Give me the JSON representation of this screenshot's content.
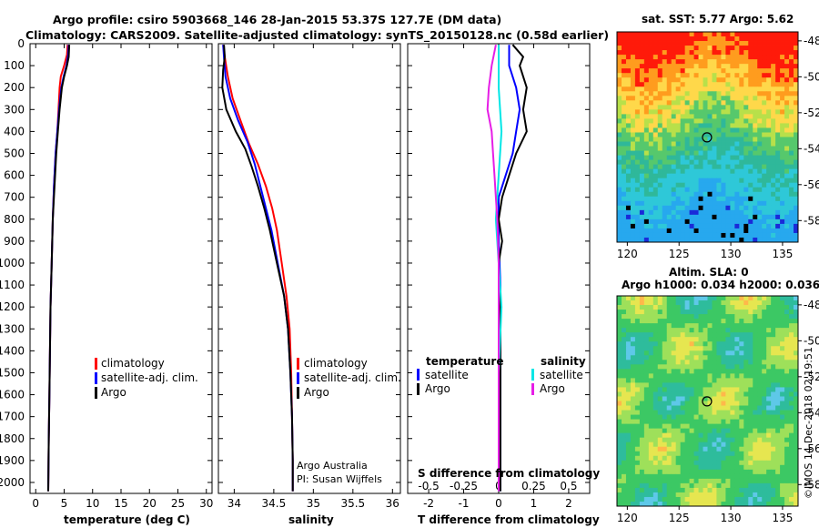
{
  "titles": {
    "line1": "Argo profile: csiro 5903668_146 28-Jan-2015 53.37S 127.7E (DM data)",
    "line2": "Climatology: CARS2009. Satellite-adjusted climatology: synTS_20150128.nc (0.58d earlier)"
  },
  "colors": {
    "climatology": "#ff0000",
    "satellite": "#0000ff",
    "argo": "#000000",
    "sat_salinity": "#00e6e6",
    "argo_salinity": "#e61ee6"
  },
  "chart_data": [
    {
      "type": "line",
      "panel": "temperature",
      "xlabel": "temperature (deg C)",
      "xlim": [
        -1,
        31
      ],
      "xticks": [
        "0",
        "5",
        "10",
        "15",
        "20",
        "25",
        "30"
      ],
      "ylim": [
        2050,
        0
      ],
      "yticks": [
        "0",
        "100",
        "200",
        "300",
        "400",
        "500",
        "600",
        "700",
        "800",
        "900",
        "1000",
        "1100",
        "1200",
        "1300",
        "1400",
        "1500",
        "1600",
        "1700",
        "1800",
        "1900",
        "2000"
      ],
      "legend": [
        "climatology",
        "satellite-adj. clim.",
        "Argo"
      ],
      "series": [
        {
          "name": "climatology",
          "color": "red",
          "points": [
            [
              5.6,
              5
            ],
            [
              5.5,
              50
            ],
            [
              5.0,
              100
            ],
            [
              4.4,
              150
            ],
            [
              4.2,
              200
            ],
            [
              4.0,
              300
            ],
            [
              3.8,
              400
            ],
            [
              3.5,
              500
            ],
            [
              3.2,
              650
            ],
            [
              3.0,
              800
            ],
            [
              2.8,
              1000
            ],
            [
              2.6,
              1200
            ],
            [
              2.5,
              1400
            ],
            [
              2.4,
              1600
            ],
            [
              2.3,
              1800
            ],
            [
              2.2,
              2040
            ]
          ]
        },
        {
          "name": "satellite-adj. clim.",
          "color": "blue",
          "points": [
            [
              5.8,
              5
            ],
            [
              5.7,
              50
            ],
            [
              5.4,
              100
            ],
            [
              4.9,
              150
            ],
            [
              4.5,
              200
            ],
            [
              4.1,
              300
            ],
            [
              3.8,
              400
            ],
            [
              3.5,
              500
            ],
            [
              3.2,
              650
            ],
            [
              3.0,
              800
            ],
            [
              2.8,
              1000
            ],
            [
              2.6,
              1200
            ],
            [
              2.5,
              1400
            ],
            [
              2.4,
              1600
            ],
            [
              2.3,
              1800
            ],
            [
              2.2,
              2040
            ]
          ]
        },
        {
          "name": "Argo",
          "color": "black",
          "points": [
            [
              5.9,
              5
            ],
            [
              5.8,
              60
            ],
            [
              5.5,
              100
            ],
            [
              5.0,
              150
            ],
            [
              4.6,
              200
            ],
            [
              4.2,
              300
            ],
            [
              3.9,
              400
            ],
            [
              3.6,
              500
            ],
            [
              3.3,
              650
            ],
            [
              3.0,
              800
            ],
            [
              2.8,
              1000
            ],
            [
              2.6,
              1200
            ],
            [
              2.5,
              1400
            ],
            [
              2.4,
              1600
            ],
            [
              2.3,
              1800
            ],
            [
              2.2,
              2040
            ]
          ]
        }
      ]
    },
    {
      "type": "line",
      "panel": "salinity",
      "xlabel": "salinity",
      "xlim": [
        33.8,
        36.1
      ],
      "xticks": [
        "34",
        "34.5",
        "35",
        "35.5",
        "36"
      ],
      "ylim": [
        2050,
        0
      ],
      "legend": [
        "climatology",
        "satellite-adj. clim.",
        "Argo"
      ],
      "annotation": [
        "Argo Australia",
        "PI: Susan Wijffels"
      ],
      "series": [
        {
          "name": "climatology",
          "color": "red",
          "points": [
            [
              33.86,
              5
            ],
            [
              33.88,
              60
            ],
            [
              33.92,
              150
            ],
            [
              33.98,
              250
            ],
            [
              34.08,
              350
            ],
            [
              34.18,
              450
            ],
            [
              34.3,
              550
            ],
            [
              34.4,
              650
            ],
            [
              34.48,
              750
            ],
            [
              34.54,
              850
            ],
            [
              34.6,
              1000
            ],
            [
              34.66,
              1150
            ],
            [
              34.7,
              1300
            ],
            [
              34.72,
              1500
            ],
            [
              34.73,
              1700
            ],
            [
              34.74,
              1900
            ],
            [
              34.74,
              2040
            ]
          ]
        },
        {
          "name": "satellite-adj. clim.",
          "color": "blue",
          "points": [
            [
              33.86,
              5
            ],
            [
              33.87,
              60
            ],
            [
              33.89,
              150
            ],
            [
              33.95,
              250
            ],
            [
              34.05,
              350
            ],
            [
              34.17,
              450
            ],
            [
              34.26,
              550
            ],
            [
              34.33,
              650
            ],
            [
              34.4,
              750
            ],
            [
              34.47,
              850
            ],
            [
              34.55,
              1000
            ],
            [
              34.63,
              1150
            ],
            [
              34.68,
              1300
            ],
            [
              34.71,
              1500
            ],
            [
              34.73,
              1700
            ],
            [
              34.74,
              1900
            ],
            [
              34.74,
              2040
            ]
          ]
        },
        {
          "name": "Argo",
          "color": "black",
          "points": [
            [
              33.87,
              5
            ],
            [
              33.88,
              60
            ],
            [
              33.86,
              120
            ],
            [
              33.85,
              200
            ],
            [
              33.9,
              300
            ],
            [
              34.02,
              400
            ],
            [
              34.14,
              480
            ],
            [
              34.22,
              560
            ],
            [
              34.3,
              650
            ],
            [
              34.38,
              750
            ],
            [
              34.45,
              850
            ],
            [
              34.54,
              1000
            ],
            [
              34.63,
              1150
            ],
            [
              34.68,
              1300
            ],
            [
              34.71,
              1500
            ],
            [
              34.73,
              1700
            ],
            [
              34.74,
              1900
            ],
            [
              34.74,
              2040
            ]
          ]
        }
      ]
    },
    {
      "type": "line",
      "panel": "difference",
      "xlabel": "T difference from climatology",
      "xlim": [
        -2.6,
        2.6
      ],
      "xticks": [
        "-2",
        "-1",
        "0",
        "1",
        "2"
      ],
      "secondary_xlabel": "S difference from climatology",
      "secondary_xticks": [
        "-0.5",
        "-0.25",
        "0",
        "0.25",
        "0.5"
      ],
      "ylim": [
        2050,
        0
      ],
      "legend": {
        "temperature": [
          "temperature",
          "satellite",
          "Argo"
        ],
        "salinity": [
          "salinity",
          "satellite",
          "Argo"
        ]
      },
      "series": [
        {
          "name": "T satellite",
          "color": "blue",
          "points": [
            [
              0.3,
              5
            ],
            [
              0.3,
              100
            ],
            [
              0.5,
              200
            ],
            [
              0.6,
              300
            ],
            [
              0.5,
              400
            ],
            [
              0.4,
              500
            ],
            [
              0.2,
              600
            ],
            [
              0.0,
              700
            ],
            [
              0.0,
              900
            ],
            [
              0.05,
              1100
            ],
            [
              0.05,
              1500
            ],
            [
              0.05,
              2040
            ]
          ]
        },
        {
          "name": "T Argo",
          "color": "black",
          "points": [
            [
              0.4,
              5
            ],
            [
              0.7,
              60
            ],
            [
              0.6,
              100
            ],
            [
              0.8,
              200
            ],
            [
              0.7,
              300
            ],
            [
              0.8,
              400
            ],
            [
              0.5,
              500
            ],
            [
              0.3,
              600
            ],
            [
              0.1,
              700
            ],
            [
              0.0,
              800
            ],
            [
              0.1,
              900
            ],
            [
              0.0,
              1000
            ],
            [
              0.05,
              1200
            ],
            [
              0.05,
              1500
            ],
            [
              0.05,
              2040
            ]
          ]
        },
        {
          "name": "S satellite",
          "color": "cyan",
          "points": [
            [
              0.0,
              5
            ],
            [
              0.0,
              200
            ],
            [
              0.02,
              400
            ],
            [
              0.0,
              600
            ],
            [
              -0.02,
              800
            ],
            [
              0.0,
              1000
            ],
            [
              0.02,
              1200
            ],
            [
              0.0,
              1500
            ],
            [
              0.0,
              2040
            ]
          ]
        },
        {
          "name": "S Argo",
          "color": "magenta",
          "points": [
            [
              -0.02,
              5
            ],
            [
              -0.05,
              100
            ],
            [
              -0.07,
              200
            ],
            [
              -0.08,
              300
            ],
            [
              -0.05,
              400
            ],
            [
              -0.04,
              500
            ],
            [
              -0.03,
              600
            ],
            [
              -0.02,
              700
            ],
            [
              -0.01,
              800
            ],
            [
              0.0,
              1000
            ],
            [
              0.0,
              1500
            ],
            [
              0.0,
              2040
            ]
          ]
        }
      ]
    },
    {
      "type": "heatmap",
      "panel": "sst",
      "title": "sat. SST: 5.77 Argo: 5.62",
      "xlim": [
        119,
        136.5
      ],
      "xticks": [
        "120",
        "125",
        "130",
        "135"
      ],
      "ylim": [
        -59.2,
        -47.5
      ],
      "yticks": [
        "-48",
        "-50",
        "-52",
        "-54",
        "-56",
        "-58"
      ],
      "marker": [
        127.7,
        -53.37
      ]
    },
    {
      "type": "heatmap",
      "panel": "sla",
      "title": "Altim. SLA: 0",
      "subtitle": "Argo h1000: 0.034 h2000: 0.036",
      "xlim": [
        119,
        136.5
      ],
      "xticks": [
        "120",
        "125",
        "130",
        "135"
      ],
      "ylim": [
        -59.2,
        -47.5
      ],
      "yticks": [
        "-48",
        "-50",
        "-52",
        "-54",
        "-56",
        "-58"
      ],
      "marker": [
        127.7,
        -53.37
      ]
    }
  ],
  "footer": {
    "stamp": "©IMOS 14-Dec-2018 02:19:51"
  }
}
